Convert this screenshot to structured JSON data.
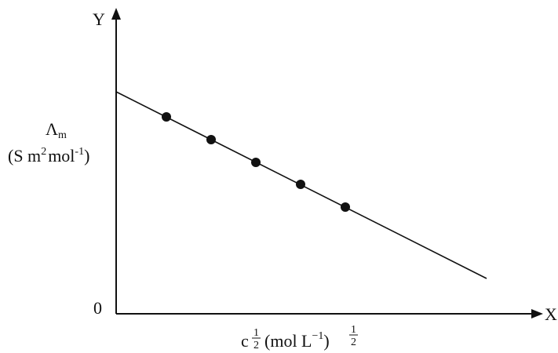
{
  "axes": {
    "y_label": "Y",
    "x_label": "X",
    "origin": "0"
  },
  "y_title": {
    "symbol": "Λ",
    "subscript": "m",
    "units": [
      "(S m",
      "2",
      "mol",
      "-1",
      ")"
    ]
  },
  "x_title": {
    "symbol": "c",
    "exp_num": "1",
    "exp_den": "2",
    "units": "(mol L",
    "units_exp": "−1",
    "units_close": ")",
    "outer_num": "1",
    "outer_den": "2"
  }
}
